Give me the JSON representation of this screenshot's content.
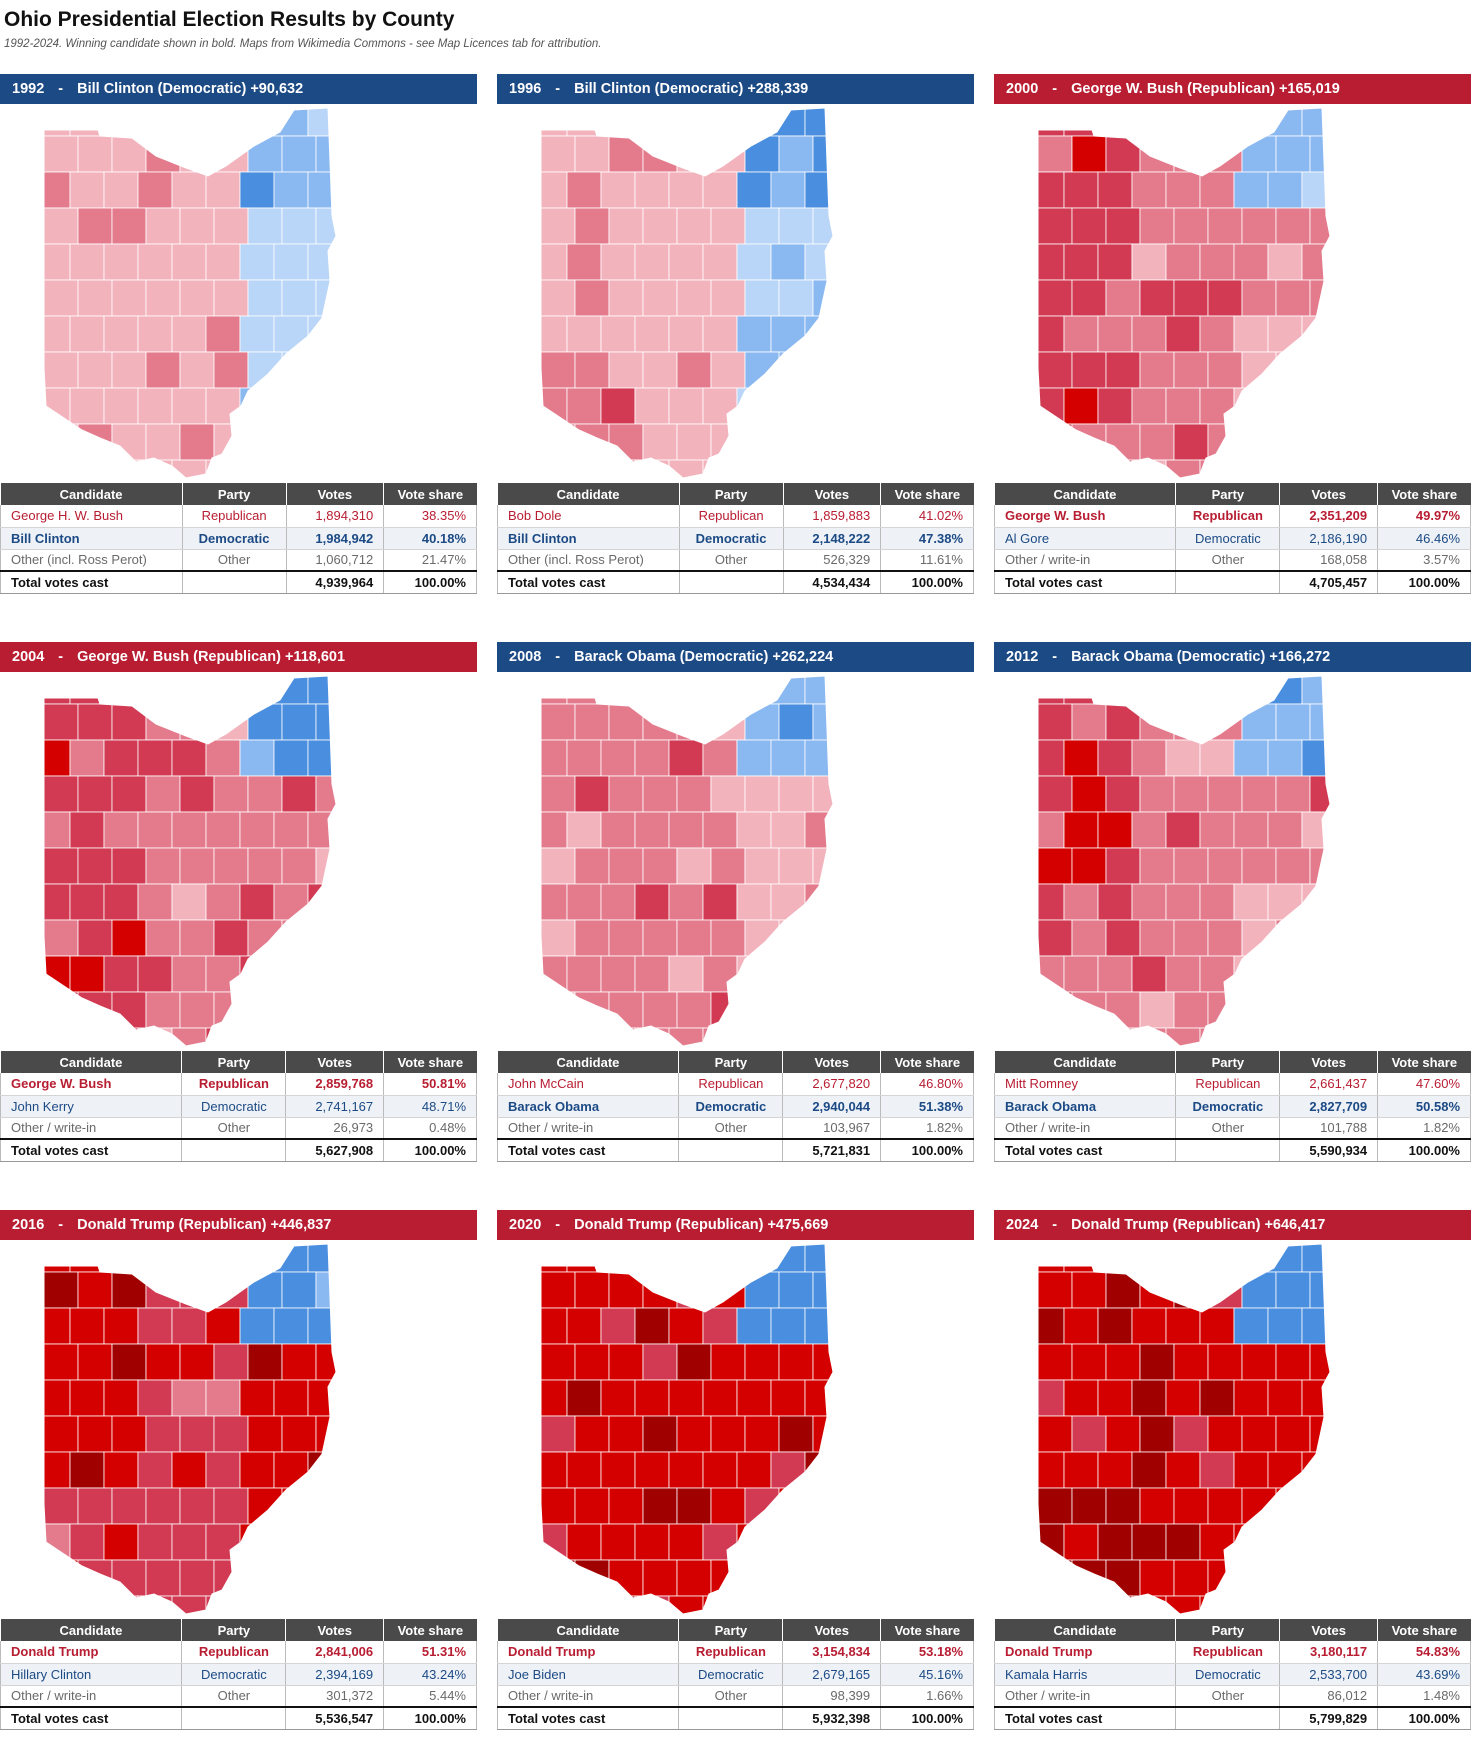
{
  "header": {
    "title": "Ohio Presidential Election Results by County",
    "subtitle": "1992-2024. Winning candidate shown in bold. Maps from Wikimedia Commons - see Map Licences tab for attribution."
  },
  "table_headers": {
    "candidate": "Candidate",
    "party": "Party",
    "votes": "Votes",
    "share": "Vote share"
  },
  "colors": {
    "dem_header": "#1c4a85",
    "rep_header": "#b81d32",
    "rep_shades": [
      "#f2b3bd",
      "#e47b8d",
      "#d13a52",
      "#d40000",
      "#a10000"
    ],
    "dem_shades": [
      "#b9d5f7",
      "#8ab8f0",
      "#4a8ee0"
    ]
  },
  "panels": [
    {
      "year": "1992",
      "sep": "-",
      "winner": "Bill Clinton (Democratic) +90,632",
      "party": "dem",
      "rows": [
        {
          "candidate": "George H. W. Bush",
          "party": "Republican",
          "votes": "1,894,310",
          "share": "38.35%",
          "cls": "rep"
        },
        {
          "candidate": "Bill Clinton",
          "party": "Democratic",
          "votes": "1,984,942",
          "share": "40.18%",
          "cls": "dem win"
        },
        {
          "candidate": "Other (incl. Ross Perot)",
          "party": "Other",
          "votes": "1,060,712",
          "share": "21.47%",
          "cls": "oth"
        }
      ],
      "total": {
        "label": "Total votes cast",
        "votes": "4,939,964",
        "share": "100.00%"
      }
    },
    {
      "year": "1996",
      "sep": "-",
      "winner": "Bill Clinton (Democratic) +288,339",
      "party": "dem",
      "rows": [
        {
          "candidate": "Bob Dole",
          "party": "Republican",
          "votes": "1,859,883",
          "share": "41.02%",
          "cls": "rep"
        },
        {
          "candidate": "Bill Clinton",
          "party": "Democratic",
          "votes": "2,148,222",
          "share": "47.38%",
          "cls": "dem win"
        },
        {
          "candidate": "Other (incl. Ross Perot)",
          "party": "Other",
          "votes": "526,329",
          "share": "11.61%",
          "cls": "oth"
        }
      ],
      "total": {
        "label": "Total votes cast",
        "votes": "4,534,434",
        "share": "100.00%"
      }
    },
    {
      "year": "2000",
      "sep": "-",
      "winner": "George W. Bush (Republican) +165,019",
      "party": "rep",
      "rows": [
        {
          "candidate": "George W. Bush",
          "party": "Republican",
          "votes": "2,351,209",
          "share": "49.97%",
          "cls": "rep win"
        },
        {
          "candidate": "Al Gore",
          "party": "Democratic",
          "votes": "2,186,190",
          "share": "46.46%",
          "cls": "dem"
        },
        {
          "candidate": "Other / write-in",
          "party": "Other",
          "votes": "168,058",
          "share": "3.57%",
          "cls": "oth"
        }
      ],
      "total": {
        "label": "Total votes cast",
        "votes": "4,705,457",
        "share": "100.00%"
      }
    },
    {
      "year": "2004",
      "sep": "-",
      "winner": "George W. Bush (Republican) +118,601",
      "party": "rep",
      "rows": [
        {
          "candidate": "George W. Bush",
          "party": "Republican",
          "votes": "2,859,768",
          "share": "50.81%",
          "cls": "rep win"
        },
        {
          "candidate": "John Kerry",
          "party": "Democratic",
          "votes": "2,741,167",
          "share": "48.71%",
          "cls": "dem"
        },
        {
          "candidate": "Other / write-in",
          "party": "Other",
          "votes": "26,973",
          "share": "0.48%",
          "cls": "oth"
        }
      ],
      "total": {
        "label": "Total votes cast",
        "votes": "5,627,908",
        "share": "100.00%"
      }
    },
    {
      "year": "2008",
      "sep": "-",
      "winner": "Barack Obama (Democratic) +262,224",
      "party": "dem",
      "rows": [
        {
          "candidate": "John McCain",
          "party": "Republican",
          "votes": "2,677,820",
          "share": "46.80%",
          "cls": "rep"
        },
        {
          "candidate": "Barack Obama",
          "party": "Democratic",
          "votes": "2,940,044",
          "share": "51.38%",
          "cls": "dem win"
        },
        {
          "candidate": "Other / write-in",
          "party": "Other",
          "votes": "103,967",
          "share": "1.82%",
          "cls": "oth"
        }
      ],
      "total": {
        "label": "Total votes cast",
        "votes": "5,721,831",
        "share": "100.00%"
      }
    },
    {
      "year": "2012",
      "sep": "-",
      "winner": "Barack Obama (Democratic) +166,272",
      "party": "dem",
      "rows": [
        {
          "candidate": "Mitt Romney",
          "party": "Republican",
          "votes": "2,661,437",
          "share": "47.60%",
          "cls": "rep"
        },
        {
          "candidate": "Barack Obama",
          "party": "Democratic",
          "votes": "2,827,709",
          "share": "50.58%",
          "cls": "dem win"
        },
        {
          "candidate": "Other / write-in",
          "party": "Other",
          "votes": "101,788",
          "share": "1.82%",
          "cls": "oth"
        }
      ],
      "total": {
        "label": "Total votes cast",
        "votes": "5,590,934",
        "share": "100.00%"
      }
    },
    {
      "year": "2016",
      "sep": "-",
      "winner": "Donald Trump (Republican) +446,837",
      "party": "rep",
      "rows": [
        {
          "candidate": "Donald Trump",
          "party": "Republican",
          "votes": "2,841,006",
          "share": "51.31%",
          "cls": "rep win"
        },
        {
          "candidate": "Hillary Clinton",
          "party": "Democratic",
          "votes": "2,394,169",
          "share": "43.24%",
          "cls": "dem"
        },
        {
          "candidate": "Other / write-in",
          "party": "Other",
          "votes": "301,372",
          "share": "5.44%",
          "cls": "oth"
        }
      ],
      "total": {
        "label": "Total votes cast",
        "votes": "5,536,547",
        "share": "100.00%"
      }
    },
    {
      "year": "2020",
      "sep": "-",
      "winner": "Donald Trump (Republican) +475,669",
      "party": "rep",
      "rows": [
        {
          "candidate": "Donald Trump",
          "party": "Republican",
          "votes": "3,154,834",
          "share": "53.18%",
          "cls": "rep win"
        },
        {
          "candidate": "Joe Biden",
          "party": "Democratic",
          "votes": "2,679,165",
          "share": "45.16%",
          "cls": "dem"
        },
        {
          "candidate": "Other / write-in",
          "party": "Other",
          "votes": "98,399",
          "share": "1.66%",
          "cls": "oth"
        }
      ],
      "total": {
        "label": "Total votes cast",
        "votes": "5,932,398",
        "share": "100.00%"
      }
    },
    {
      "year": "2024",
      "sep": "-",
      "winner": "Donald Trump (Republican) +646,417",
      "party": "rep",
      "rows": [
        {
          "candidate": "Donald Trump",
          "party": "Republican",
          "votes": "3,180,117",
          "share": "54.83%",
          "cls": "rep win"
        },
        {
          "candidate": "Kamala Harris",
          "party": "Democratic",
          "votes": "2,533,700",
          "share": "43.69%",
          "cls": "dem"
        },
        {
          "candidate": "Other / write-in",
          "party": "Other",
          "votes": "86,012",
          "share": "1.48%",
          "cls": "oth"
        }
      ],
      "total": {
        "label": "Total votes cast",
        "votes": "5,799,829",
        "share": "100.00%"
      }
    }
  ]
}
